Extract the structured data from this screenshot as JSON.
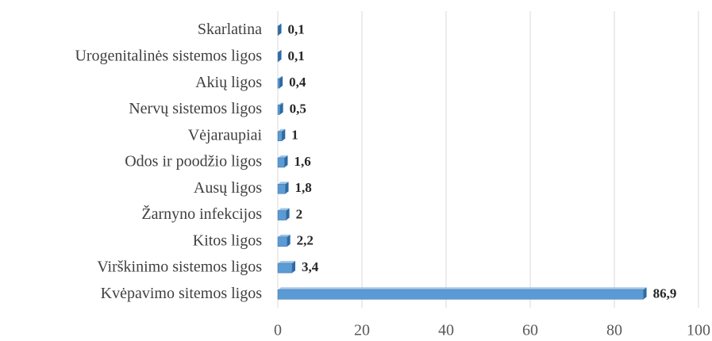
{
  "chart_data": {
    "type": "bar",
    "orientation": "horizontal",
    "categories": [
      "Skarlatina",
      "Urogenitalinės sistemos ligos",
      "Akių ligos",
      "Nervų sistemos ligos",
      "Vėjaraupiai",
      "Odos ir poodžio ligos",
      "Ausų ligos",
      "Žarnyno infekcijos",
      "Kitos ligos",
      "Virškinimo sistemos ligos",
      "Kvėpavimo sitemos ligos"
    ],
    "values": [
      0.1,
      0.1,
      0.4,
      0.5,
      1,
      1.6,
      1.8,
      2,
      2.2,
      3.4,
      86.9
    ],
    "value_labels": [
      "0,1",
      "0,1",
      "0,4",
      "0,5",
      "1",
      "1,6",
      "1,8",
      "2",
      "2,2",
      "3,4",
      "86,9"
    ],
    "color": "#5b9bd5",
    "xlim": [
      0,
      100
    ],
    "xticks": [
      0,
      20,
      40,
      60,
      80,
      100
    ],
    "grid": true
  }
}
